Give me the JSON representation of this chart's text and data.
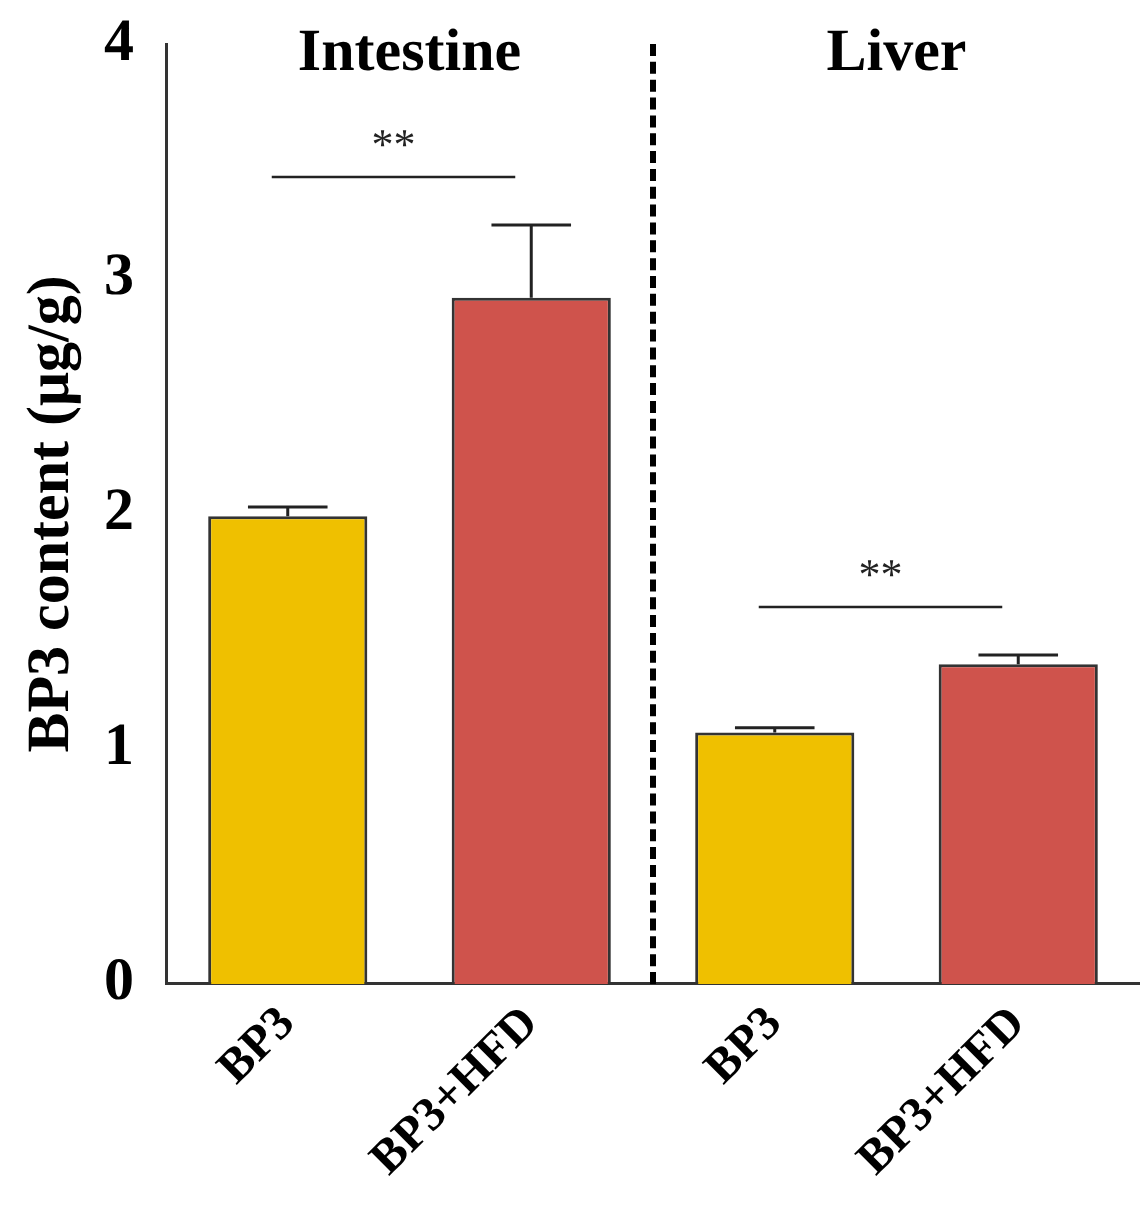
{
  "chart_data": {
    "type": "bar",
    "ylabel": "BP3 content (μg/g)",
    "categories": [
      "BP3",
      "BP3+HFD",
      "BP3",
      "BP3+HFD"
    ],
    "values": [
      1.99,
      2.92,
      1.07,
      1.36
    ],
    "errors": [
      0.04,
      0.31,
      0.02,
      0.04
    ],
    "colors": [
      "#efc000",
      "#cf534c",
      "#efc000",
      "#cf534c"
    ],
    "ylim": [
      0,
      4
    ],
    "yticks": [
      0,
      1,
      2,
      3,
      4
    ],
    "grid": false,
    "legend": false,
    "annotations": [
      "Intestine",
      "Liver",
      "**",
      "**"
    ]
  }
}
